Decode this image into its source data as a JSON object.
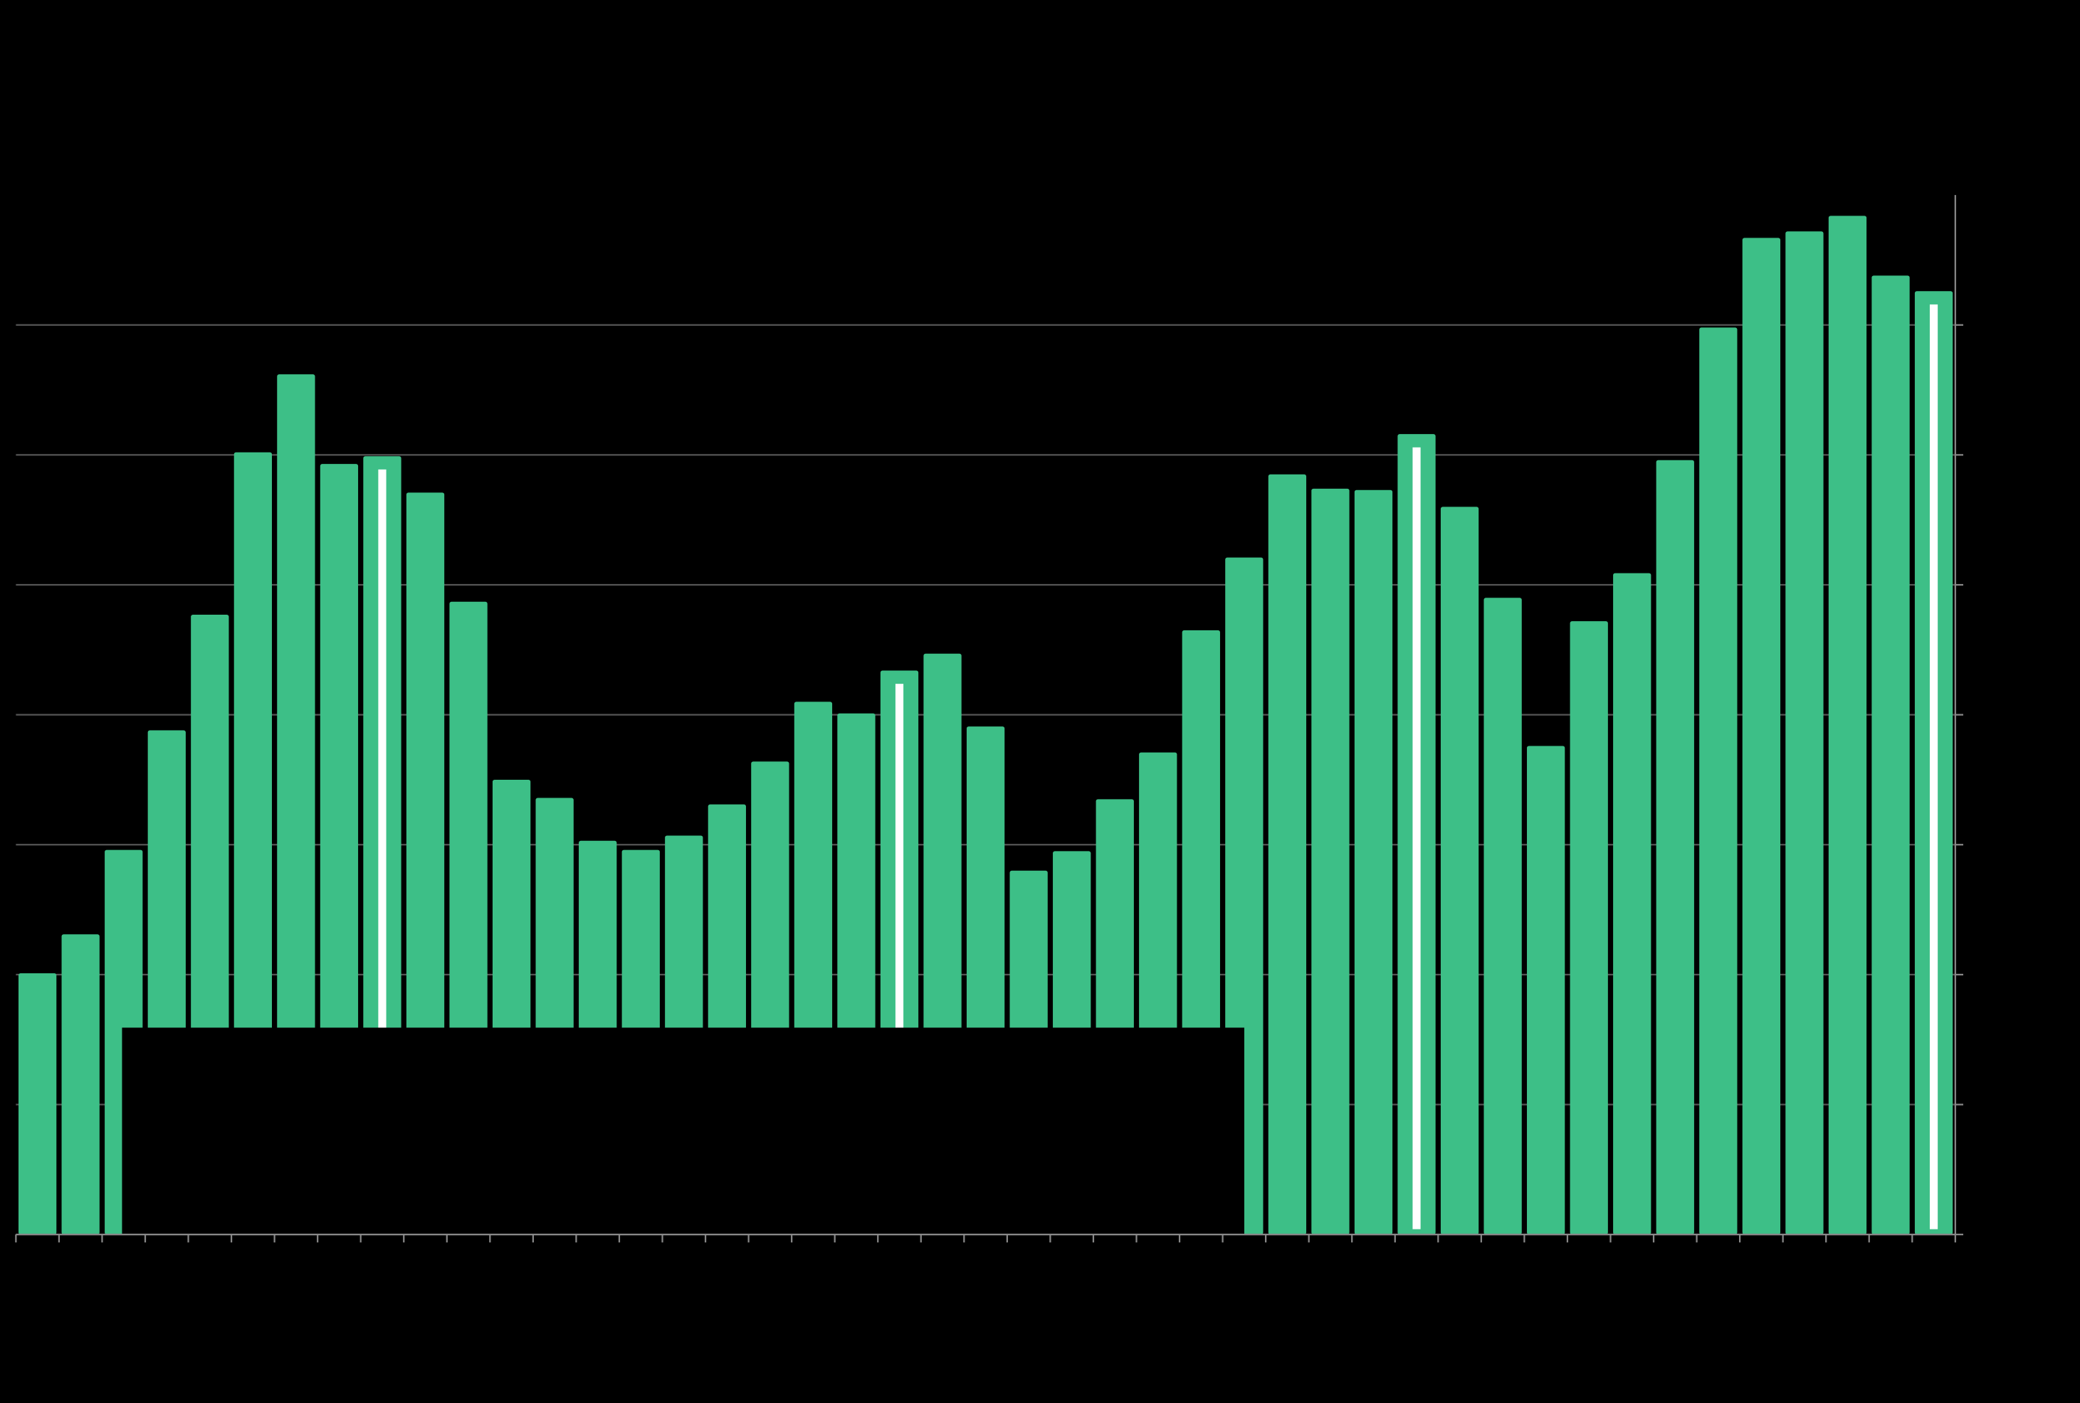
{
  "chart_data": {
    "type": "bar",
    "values": [
      2.01,
      2.31,
      2.96,
      3.88,
      4.77,
      6.02,
      6.62,
      5.93,
      5.99,
      5.71,
      4.87,
      3.5,
      3.36,
      3.03,
      2.96,
      3.07,
      3.31,
      3.64,
      4.1,
      4.01,
      4.34,
      4.47,
      3.91,
      2.8,
      2.95,
      3.35,
      3.71,
      4.65,
      5.21,
      5.85,
      5.74,
      5.73,
      6.16,
      5.6,
      4.9,
      3.76,
      4.72,
      5.09,
      5.96,
      6.98,
      7.67,
      7.72,
      7.84,
      7.38,
      7.26
    ],
    "color": "#3dbf87",
    "highlighted": [
      8,
      20,
      32,
      44
    ],
    "highlight_color": "#ffffff",
    "ylim": [
      0,
      8
    ],
    "yticks": [
      0,
      1,
      2,
      3,
      4,
      5,
      6,
      7
    ],
    "grid": true
  }
}
